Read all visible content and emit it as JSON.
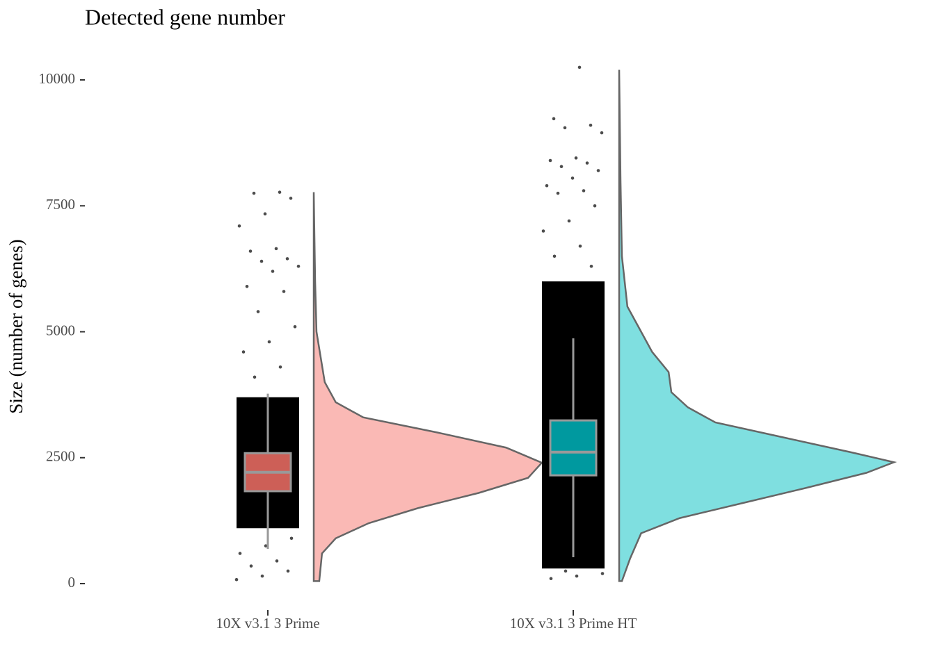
{
  "chart_data": {
    "type": "raincloud",
    "title": "Detected gene number",
    "y_label": "Size (number of genes)",
    "categories": [
      "10X v3.1 3 Prime",
      "10X v3.1 3 Prime HT"
    ],
    "ylim": [
      -400,
      10400
    ],
    "yticks": [
      0,
      2500,
      5000,
      7500,
      10000
    ],
    "groups": [
      {
        "density_color": "#fab9b5",
        "box_color": "#cd5f57",
        "box": {
          "whisker_low": 690,
          "q1": 1835,
          "median": 2210,
          "q3": 2590,
          "whisker_high": 3770
        },
        "density": {
          "y": [
            50,
            600,
            900,
            1200,
            1500,
            1800,
            2100,
            2400,
            2700,
            3000,
            3300,
            3600,
            4000,
            5000,
            6000,
            7770
          ],
          "width": [
            0.02,
            0.03,
            0.08,
            0.2,
            0.38,
            0.6,
            0.78,
            0.83,
            0.7,
            0.45,
            0.18,
            0.08,
            0.04,
            0.01,
            0.005,
            0
          ]
        },
        "dense_range": [
          1100,
          3700
        ],
        "points": [
          80,
          150,
          250,
          350,
          450,
          600,
          750,
          900,
          4100,
          4300,
          4600,
          4800,
          5100,
          5400,
          5800,
          5900,
          6200,
          6300,
          6400,
          6450,
          6600,
          6650,
          7100,
          7340,
          7650,
          7750,
          7770
        ]
      },
      {
        "density_color": "#7fdfe0",
        "box_color": "#00999f",
        "box": {
          "whisker_low": 525,
          "q1": 2150,
          "median": 2610,
          "q3": 3240,
          "whisker_high": 4870
        },
        "density": {
          "y": [
            50,
            500,
            1000,
            1300,
            1600,
            1900,
            2200,
            2410,
            2600,
            2900,
            3200,
            3500,
            3800,
            4200,
            4600,
            5000,
            5500,
            6500,
            8000,
            10200
          ],
          "width": [
            0.01,
            0.04,
            0.08,
            0.22,
            0.45,
            0.68,
            0.9,
            1,
            0.85,
            0.6,
            0.35,
            0.25,
            0.19,
            0.18,
            0.12,
            0.08,
            0.03,
            0.01,
            0.005,
            0
          ]
        },
        "dense_range": [
          300,
          6000
        ],
        "points": [
          100,
          150,
          200,
          250,
          6300,
          6500,
          6700,
          7000,
          7200,
          7500,
          7750,
          7800,
          7900,
          8050,
          8200,
          8280,
          8350,
          8400,
          8450,
          8950,
          9050,
          9100,
          9230,
          10250
        ]
      }
    ]
  }
}
